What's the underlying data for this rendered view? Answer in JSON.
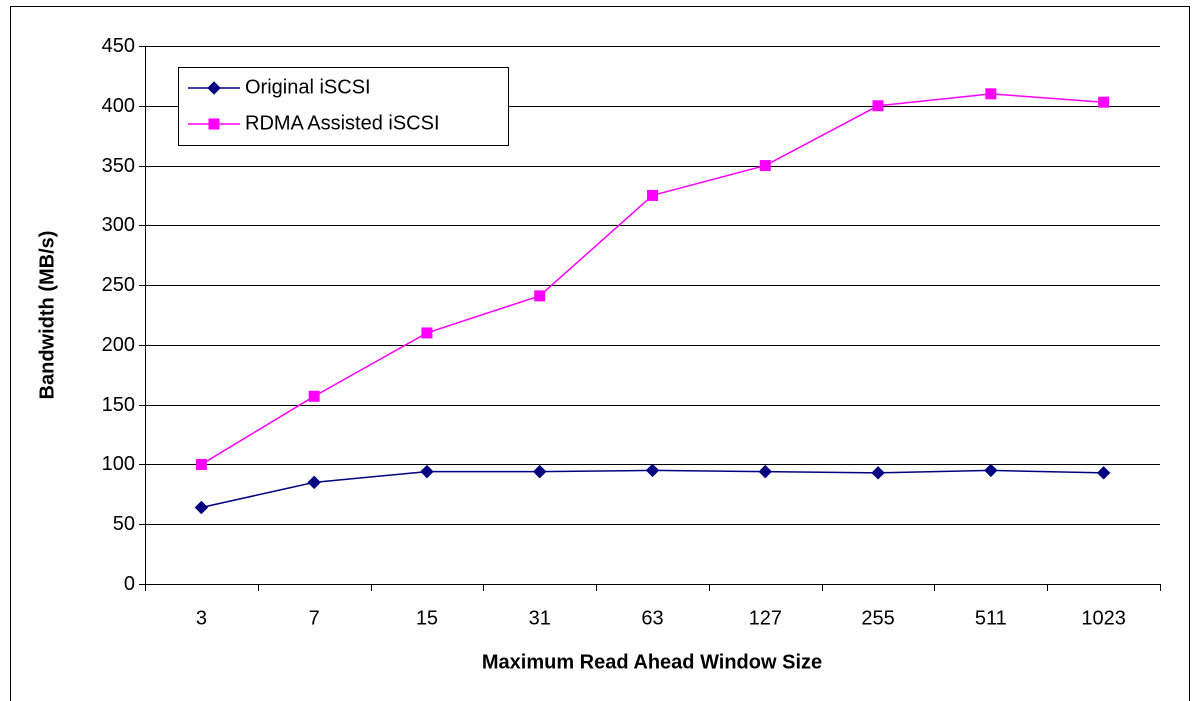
{
  "chart_data": {
    "type": "line",
    "x_label": "Maximum Read Ahead Window Size",
    "y_label": "Bandwidth (MB/s)",
    "categories": [
      "3",
      "7",
      "15",
      "31",
      "63",
      "127",
      "255",
      "511",
      "1023"
    ],
    "series": [
      {
        "name": "Original iSCSI",
        "color": "#000080",
        "marker": "diamond",
        "values": [
          64,
          85,
          94,
          94,
          95,
          94,
          93,
          95,
          93
        ]
      },
      {
        "name": "RDMA Assisted iSCSI",
        "color": "#ff00ff",
        "marker": "square",
        "values": [
          100,
          157,
          210,
          241,
          325,
          350,
          400,
          410,
          403
        ]
      }
    ],
    "ylim": [
      0,
      450
    ],
    "yticks": [
      0,
      50,
      100,
      150,
      200,
      250,
      300,
      350,
      400,
      450
    ],
    "grid": true,
    "legend": "upper left"
  }
}
